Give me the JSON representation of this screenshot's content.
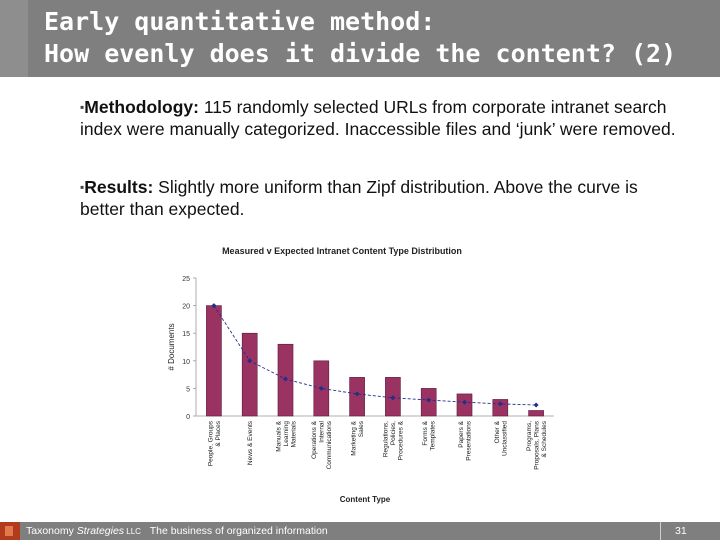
{
  "slide": {
    "title_line1": "Early quantitative method:",
    "title_line2": "How evenly does it divide the content? (2)",
    "bullet_mark": "▪",
    "methodology_label": "Methodology:",
    "methodology_text": " 115 randomly selected URLs from corporate intranet search index were manually categorized. Inaccessible files and ‘junk’ were removed.",
    "results_label": "Results:",
    "results_text": " Slightly more uniform than Zipf distribution. Above the curve is better than expected."
  },
  "footer": {
    "company_a": "Taxonomy ",
    "company_b": "Strategies",
    "company_c": " LLC",
    "tagline": "The business of organized information",
    "page_number": "31"
  },
  "colors": {
    "bar": "#9b3362",
    "expected_line": "#1f2f8a"
  },
  "chart_data": {
    "type": "bar",
    "title": "Measured v Expected Intranet Content Type Distribution",
    "xlabel": "Content Type",
    "ylabel": "# Documents",
    "ylim": [
      0,
      25
    ],
    "yticks": [
      0,
      5,
      10,
      15,
      20,
      25
    ],
    "categories": [
      [
        "People, Groups",
        "& Places"
      ],
      [
        "News & Events"
      ],
      [
        "Manuals &",
        "Learning",
        "Materials"
      ],
      [
        "Operations &",
        "Internal",
        "Communications"
      ],
      [
        "Marketing &",
        "Sales"
      ],
      [
        "Regulations,",
        "Policies,",
        "Procedures &"
      ],
      [
        "Forms &",
        "Templates"
      ],
      [
        "Papers &",
        "Presentations"
      ],
      [
        "Other &",
        "Unclassified"
      ],
      [
        "Programs,",
        "Proposals, Plans",
        "& Schedules"
      ]
    ],
    "series": [
      {
        "type": "bar",
        "values": [
          20,
          15,
          13,
          10,
          7,
          7,
          5,
          4,
          3,
          1
        ]
      },
      {
        "type": "line",
        "values": [
          20,
          10,
          6.7,
          5,
          4,
          3.3,
          2.9,
          2.5,
          2.2,
          2
        ]
      }
    ]
  }
}
